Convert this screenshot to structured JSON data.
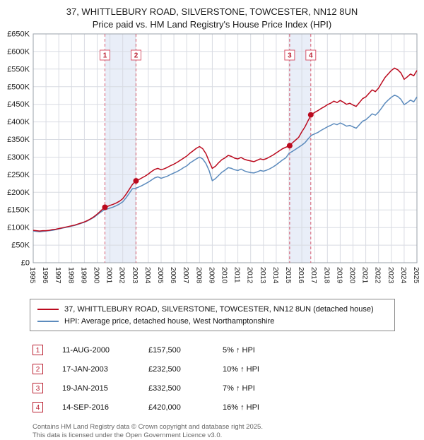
{
  "title": {
    "line1": "37, WHITTLEBURY ROAD, SILVERSTONE, TOWCESTER, NN12 8UN",
    "line2": "Price paid vs. HM Land Registry's House Price Index (HPI)"
  },
  "chart_data": {
    "type": "line",
    "title": "Price paid vs. HM Land Registry's House Price Index (HPI)",
    "x_range": [
      1995,
      2025
    ],
    "y_range": [
      0,
      650
    ],
    "y_unit": "GBP thousands",
    "grid": true,
    "legend_position": "bottom",
    "y_ticks": [
      0,
      50,
      100,
      150,
      200,
      250,
      300,
      350,
      400,
      450,
      500,
      550,
      600,
      650
    ],
    "y_tick_labels": [
      "£0",
      "£50K",
      "£100K",
      "£150K",
      "£200K",
      "£250K",
      "£300K",
      "£350K",
      "£400K",
      "£450K",
      "£500K",
      "£550K",
      "£600K",
      "£650K"
    ],
    "x_start": 1995,
    "x_step": 0.25,
    "colors": {
      "band": "#e9eef8",
      "grid": "#d8dbe2",
      "dashed": "#d8596e",
      "axis_text": "#222222",
      "plot_border": "#9aa0a8"
    },
    "series": [
      {
        "name": "37, WHITTLEBURY ROAD, SILVERSTONE, TOWCESTER, NN12 8UN (detached house)",
        "color": "#bb0a1e",
        "values": [
          92,
          91,
          90,
          91,
          91,
          92,
          94,
          95,
          97,
          99,
          101,
          103,
          105,
          107,
          110,
          113,
          116,
          120,
          125,
          131,
          138,
          146,
          155,
          159,
          163,
          166,
          170,
          175,
          182,
          194,
          208,
          222,
          232,
          236,
          241,
          246,
          252,
          259,
          265,
          268,
          264,
          267,
          271,
          276,
          280,
          285,
          291,
          297,
          303,
          311,
          318,
          325,
          330,
          324,
          310,
          288,
          268,
          274,
          284,
          293,
          298,
          305,
          302,
          297,
          295,
          299,
          294,
          291,
          289,
          287,
          291,
          295,
          293,
          296,
          301,
          306,
          312,
          318,
          324,
          328,
          332,
          340,
          348,
          356,
          372,
          386,
          404,
          421,
          427,
          432,
          438,
          443,
          449,
          453,
          459,
          455,
          461,
          456,
          450,
          453,
          448,
          444,
          455,
          466,
          471,
          481,
          491,
          486,
          496,
          511,
          526,
          536,
          546,
          553,
          548,
          539,
          521,
          528,
          536,
          531,
          546
        ]
      },
      {
        "name": "HPI: Average price, detached house, West Northamptonshire",
        "color": "#5c8bbd",
        "values": [
          90,
          89,
          88,
          89,
          90,
          91,
          92,
          94,
          96,
          98,
          100,
          102,
          104,
          106,
          109,
          112,
          115,
          119,
          124,
          129,
          136,
          143,
          149,
          152,
          155,
          158,
          162,
          167,
          173,
          184,
          197,
          210,
          211,
          215,
          219,
          224,
          229,
          235,
          241,
          244,
          240,
          243,
          246,
          251,
          255,
          259,
          264,
          270,
          275,
          283,
          289,
          295,
          300,
          295,
          282,
          262,
          233,
          239,
          248,
          257,
          263,
          270,
          268,
          264,
          262,
          266,
          261,
          258,
          256,
          255,
          258,
          262,
          260,
          263,
          267,
          272,
          278,
          285,
          292,
          298,
          311,
          316,
          322,
          328,
          334,
          341,
          352,
          362,
          366,
          370,
          376,
          381,
          386,
          390,
          395,
          392,
          397,
          393,
          388,
          390,
          386,
          382,
          392,
          402,
          406,
          414,
          423,
          419,
          428,
          440,
          453,
          462,
          470,
          476,
          472,
          464,
          449,
          455,
          462,
          457,
          471
        ]
      }
    ],
    "sale_markers": [
      {
        "label": "1",
        "x": 2000.61,
        "value": 157.5
      },
      {
        "label": "2",
        "x": 2003.04,
        "value": 232.5
      },
      {
        "label": "3",
        "x": 2015.05,
        "value": 332.5
      },
      {
        "label": "4",
        "x": 2016.7,
        "value": 420
      }
    ],
    "shaded_bands": [
      [
        2000.61,
        2003.04
      ],
      [
        2015.05,
        2016.7
      ]
    ]
  },
  "legend": {
    "items": [
      {
        "label": "37, WHITTLEBURY ROAD, SILVERSTONE, TOWCESTER, NN12 8UN (detached house)",
        "color": "#bb0a1e"
      },
      {
        "label": "HPI: Average price, detached house, West Northamptonshire",
        "color": "#5c8bbd"
      }
    ]
  },
  "transactions": [
    {
      "num": "1",
      "date": "11-AUG-2000",
      "price": "£157,500",
      "hpi_diff": "5% ↑ HPI"
    },
    {
      "num": "2",
      "date": "17-JAN-2003",
      "price": "£232,500",
      "hpi_diff": "10% ↑ HPI"
    },
    {
      "num": "3",
      "date": "19-JAN-2015",
      "price": "£332,500",
      "hpi_diff": "7% ↑ HPI"
    },
    {
      "num": "4",
      "date": "14-SEP-2016",
      "price": "£420,000",
      "hpi_diff": "16% ↑ HPI"
    }
  ],
  "footer": {
    "line1": "Contains HM Land Registry data © Crown copyright and database right 2025.",
    "line2": "This data is licensed under the Open Government Licence v3.0."
  }
}
